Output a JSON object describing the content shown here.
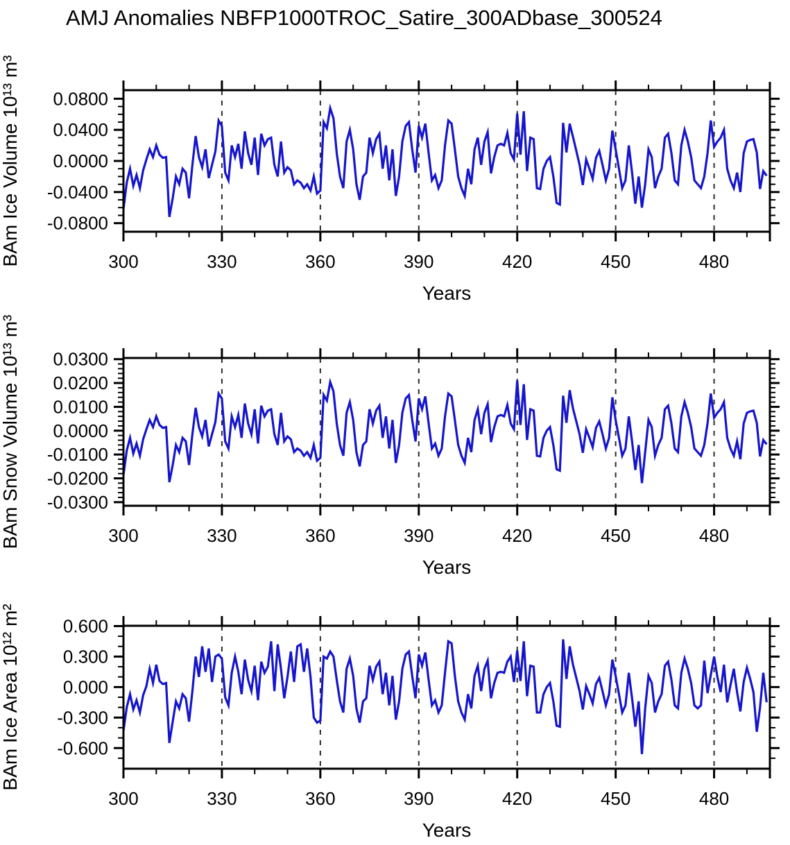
{
  "title": "AMJ Anomalies NBFP1000TROC_Satire_300ADbase_300524",
  "line_color": "#1515cd",
  "axis_color": "#000000",
  "gridline_color": "#2a2a2a",
  "chart_data": [
    {
      "type": "line",
      "id": "ice-volume",
      "ylabel": "BAm Ice Volume 10¹³ m³",
      "xlabel": "Years",
      "xlim": [
        300,
        497
      ],
      "ylim": [
        -0.091,
        0.091
      ],
      "xticks": {
        "major": [
          300,
          330,
          360,
          390,
          420,
          450,
          480
        ],
        "labels": [
          "300",
          "330",
          "360",
          "390",
          "420",
          "450",
          "480"
        ],
        "minor_step": 10
      },
      "yticks": {
        "major": [
          0.08,
          0.04,
          0,
          -0.04,
          -0.08
        ],
        "labels": [
          "0.0800",
          "0.0400",
          "0.0000",
          "-0.0400",
          "-0.0800"
        ],
        "minor_step": 0.01
      },
      "gridlines_x": [
        330,
        360,
        390,
        420,
        450,
        480
      ],
      "grid_on": true,
      "legend": "none",
      "x_start": 300,
      "x_step": 1,
      "values": [
        -0.062,
        -0.028,
        -0.01,
        -0.032,
        -0.018,
        -0.035,
        -0.012,
        0.002,
        0.015,
        0.005,
        0.02,
        0.008,
        0.004,
        0.005,
        -0.072,
        -0.048,
        -0.02,
        -0.03,
        -0.01,
        -0.015,
        -0.048,
        -0.005,
        0.032,
        0.005,
        -0.008,
        0.015,
        -0.022,
        -0.005,
        0.012,
        0.052,
        0.045,
        -0.015,
        -0.025,
        0.02,
        0.005,
        0.022,
        -0.01,
        0.038,
        0.01,
        -0.005,
        0.03,
        -0.018,
        0.035,
        0.02,
        0.028,
        0.03,
        -0.005,
        -0.02,
        0.025,
        -0.015,
        -0.008,
        -0.012,
        -0.03,
        -0.025,
        -0.028,
        -0.035,
        -0.03,
        -0.038,
        -0.02,
        -0.042,
        -0.038,
        0.05,
        0.042,
        0.068,
        0.055,
        0.01,
        -0.02,
        -0.035,
        0.025,
        0.04,
        0.015,
        -0.03,
        -0.05,
        -0.02,
        -0.015,
        0.03,
        0.01,
        0.028,
        0.035,
        -0.01,
        0.02,
        -0.025,
        0.015,
        -0.045,
        -0.02,
        0.025,
        0.045,
        0.05,
        0.015,
        -0.015,
        0.045,
        0.03,
        0.048,
        0.01,
        -0.025,
        -0.018,
        -0.035,
        -0.025,
        0.02,
        0.052,
        0.048,
        0.015,
        -0.02,
        -0.035,
        -0.045,
        -0.01,
        -0.03,
        0.015,
        0.03,
        -0.005,
        0.025,
        0.037,
        -0.016,
        0.005,
        0.02,
        0.022,
        0.02,
        0.036,
        0.01,
        0.002,
        0.061,
        0.008,
        0.064,
        -0.013,
        0.03,
        0.028,
        -0.035,
        -0.036,
        -0.01,
        0,
        0.005,
        -0.02,
        -0.054,
        -0.056,
        0.049,
        0.011,
        0.048,
        0.031,
        0.013,
        -0.005,
        -0.031,
        0.002,
        -0.01,
        -0.023,
        0.004,
        0.013,
        -0.005,
        -0.025,
        -0.01,
        0.039,
        0.015,
        -0.01,
        -0.035,
        -0.025,
        0.02,
        -0.015,
        -0.055,
        -0.02,
        -0.06,
        -0.03,
        0.015,
        0.005,
        -0.035,
        -0.02,
        -0.01,
        0.03,
        0.035,
        0.01,
        -0.025,
        -0.03,
        0.02,
        0.04,
        0.025,
        0.005,
        -0.025,
        -0.03,
        -0.035,
        -0.02,
        0.01,
        0.052,
        0.018,
        0.025,
        0.03,
        0.04,
        -0.01,
        -0.025,
        -0.035,
        -0.015,
        -0.04,
        0.01,
        0.025,
        0.027,
        0.028,
        0.011,
        -0.036,
        -0.013,
        -0.019
      ]
    },
    {
      "type": "line",
      "id": "snow-volume",
      "ylabel": "BAm Snow Volume 10¹³ m³",
      "xlabel": "Years",
      "xlim": [
        300,
        497
      ],
      "ylim": [
        -0.0315,
        0.0305
      ],
      "xticks": {
        "major": [
          300,
          330,
          360,
          390,
          420,
          450,
          480
        ],
        "labels": [
          "300",
          "330",
          "360",
          "390",
          "420",
          "450",
          "480"
        ],
        "minor_step": 10
      },
      "yticks": {
        "major": [
          0.03,
          0.02,
          0.01,
          0,
          -0.01,
          -0.02,
          -0.03
        ],
        "labels": [
          "0.0300",
          "0.0200",
          "0.0100",
          "0.0000",
          "-0.0100",
          "-0.0200",
          "-0.0300"
        ],
        "minor_step": 0.002
      },
      "gridlines_x": [
        330,
        360,
        390,
        420,
        450,
        480
      ],
      "grid_on": true,
      "legend": "none",
      "x_start": 300,
      "x_step": 1,
      "values": [
        -0.0186,
        -0.0084,
        -0.003,
        -0.0096,
        -0.0054,
        -0.0105,
        -0.0036,
        0.0006,
        0.0045,
        0.0015,
        0.006,
        0.0024,
        0.0012,
        0.0015,
        -0.0216,
        -0.0144,
        -0.006,
        -0.009,
        -0.003,
        -0.0045,
        -0.0144,
        -0.0015,
        0.0096,
        0.0015,
        -0.0024,
        0.0045,
        -0.0066,
        -0.0015,
        0.0036,
        0.0156,
        0.0135,
        -0.0045,
        -0.0075,
        0.006,
        0.0015,
        0.0066,
        -0.003,
        0.0114,
        0.003,
        -0.0015,
        0.009,
        -0.0054,
        0.0105,
        0.006,
        0.0084,
        0.009,
        -0.0015,
        -0.006,
        0.0075,
        -0.0045,
        -0.0024,
        -0.0036,
        -0.009,
        -0.0075,
        -0.0084,
        -0.0105,
        -0.009,
        -0.0114,
        -0.006,
        -0.0126,
        -0.0114,
        0.015,
        0.0126,
        0.0204,
        0.0165,
        0.003,
        -0.006,
        -0.0105,
        0.0075,
        0.012,
        0.0045,
        -0.009,
        -0.015,
        -0.006,
        -0.0045,
        0.009,
        0.003,
        0.0084,
        0.0105,
        -0.003,
        0.006,
        -0.0075,
        0.0045,
        -0.0135,
        -0.006,
        0.0075,
        0.0135,
        0.015,
        0.0045,
        -0.0045,
        0.0135,
        0.009,
        0.0144,
        0.003,
        -0.0075,
        -0.0054,
        -0.0105,
        -0.0075,
        0.006,
        0.0156,
        0.0144,
        0.0045,
        -0.006,
        -0.0105,
        -0.0135,
        -0.003,
        -0.009,
        0.0045,
        0.009,
        -0.0015,
        0.0075,
        0.0111,
        -0.0048,
        0.0015,
        0.006,
        0.0066,
        0.006,
        0.0108,
        0.003,
        0.0006,
        0.021,
        0.0024,
        0.0195,
        -0.0039,
        0.009,
        0.0084,
        -0.0105,
        -0.0108,
        -0.003,
        0,
        0.0015,
        -0.006,
        -0.0162,
        -0.0168,
        0.0147,
        0.0033,
        0.017,
        0.0093,
        0.0039,
        -0.0015,
        -0.0093,
        0.0006,
        -0.003,
        -0.0069,
        0.0012,
        0.0039,
        -0.0015,
        -0.0075,
        -0.003,
        0.014,
        0.0045,
        -0.003,
        -0.0105,
        -0.0075,
        0.006,
        -0.0045,
        -0.0165,
        -0.006,
        -0.022,
        -0.009,
        0.0045,
        0.0015,
        -0.0105,
        -0.006,
        -0.003,
        0.009,
        0.0105,
        0.003,
        -0.0075,
        -0.009,
        0.006,
        0.012,
        0.0075,
        0.0015,
        -0.0075,
        -0.009,
        -0.0105,
        -0.006,
        0.003,
        0.0156,
        0.0054,
        0.0075,
        0.009,
        0.012,
        -0.003,
        -0.0075,
        -0.0105,
        -0.0045,
        -0.012,
        0.003,
        0.0075,
        0.0081,
        0.0084,
        0.0033,
        -0.0108,
        -0.0039,
        -0.0057
      ]
    },
    {
      "type": "line",
      "id": "ice-area",
      "ylabel": "BAm Ice Area 10¹² m²",
      "xlabel": "Years",
      "xlim": [
        300,
        497
      ],
      "ylim": [
        -0.803,
        0.603
      ],
      "xticks": {
        "major": [
          300,
          330,
          360,
          390,
          420,
          450,
          480
        ],
        "labels": [
          "300",
          "330",
          "360",
          "390",
          "420",
          "450",
          "480"
        ],
        "minor_step": 10
      },
      "yticks": {
        "major": [
          0.6,
          0.3,
          0,
          -0.3,
          -0.6
        ],
        "labels": [
          "0.600",
          "0.300",
          "0.000",
          "-0.300",
          "-0.600"
        ],
        "minor_step": 0.1
      },
      "gridlines_x": [
        330,
        360,
        390,
        420,
        450,
        480
      ],
      "grid_on": true,
      "legend": "none",
      "x_start": 300,
      "x_step": 1,
      "values": [
        -0.43,
        -0.2,
        -0.07,
        -0.22,
        -0.13,
        -0.25,
        -0.08,
        0.01,
        0.18,
        0.04,
        0.22,
        0.06,
        0.03,
        0.04,
        -0.55,
        -0.34,
        -0.14,
        -0.21,
        -0.07,
        -0.11,
        -0.34,
        -0.04,
        0.3,
        0.1,
        0.4,
        0.15,
        0.38,
        0.05,
        0.3,
        0.32,
        0.28,
        -0.1,
        -0.18,
        0.14,
        0.3,
        0.15,
        -0.07,
        0.27,
        0.07,
        -0.04,
        0.21,
        -0.13,
        0.25,
        0.14,
        0.2,
        0.45,
        -0.04,
        0.42,
        0.18,
        -0.11,
        0.1,
        0.35,
        0.05,
        0.4,
        0.42,
        0.15,
        0.38,
        0.1,
        -0.3,
        -0.35,
        -0.33,
        0.3,
        0.28,
        0.35,
        0.3,
        0.07,
        -0.14,
        -0.25,
        0.18,
        0.28,
        0.11,
        -0.21,
        -0.35,
        -0.14,
        -0.11,
        0.21,
        0.07,
        0.2,
        0.25,
        -0.07,
        0.14,
        -0.18,
        0.11,
        -0.32,
        -0.14,
        0.18,
        0.32,
        0.35,
        0.11,
        -0.11,
        0.32,
        0.21,
        0.34,
        0.07,
        -0.18,
        -0.13,
        -0.25,
        -0.18,
        0.14,
        0.45,
        0.43,
        0.11,
        -0.14,
        -0.25,
        -0.32,
        -0.07,
        -0.21,
        0.11,
        0.21,
        -0.04,
        0.18,
        0.26,
        -0.11,
        0.04,
        0.14,
        0.15,
        0.14,
        0.25,
        0.3,
        0.05,
        0.36,
        0.06,
        0.45,
        -0.09,
        0.21,
        0.2,
        -0.25,
        -0.25,
        -0.07,
        0,
        0.04,
        -0.14,
        -0.38,
        -0.39,
        0.47,
        0.08,
        0.4,
        0.22,
        0.09,
        -0.04,
        -0.22,
        0.01,
        -0.07,
        -0.16,
        0.03,
        0.09,
        -0.04,
        -0.18,
        -0.07,
        0.27,
        0.11,
        -0.07,
        -0.25,
        -0.18,
        0.14,
        -0.11,
        -0.39,
        -0.14,
        -0.66,
        -0.21,
        0.11,
        0.04,
        -0.25,
        -0.14,
        -0.07,
        0.21,
        0.25,
        0.07,
        -0.18,
        -0.21,
        0.14,
        0.28,
        0.18,
        0.04,
        -0.18,
        -0.21,
        -0.18,
        0.26,
        -0.06,
        0.12,
        0.3,
        0.1,
        -0.05,
        0.22,
        -0.15,
        0.02,
        0.18,
        -0.05,
        -0.24,
        0.05,
        0.19,
        0.08,
        -0.05,
        -0.44,
        -0.2,
        0.14,
        -0.15
      ]
    }
  ]
}
